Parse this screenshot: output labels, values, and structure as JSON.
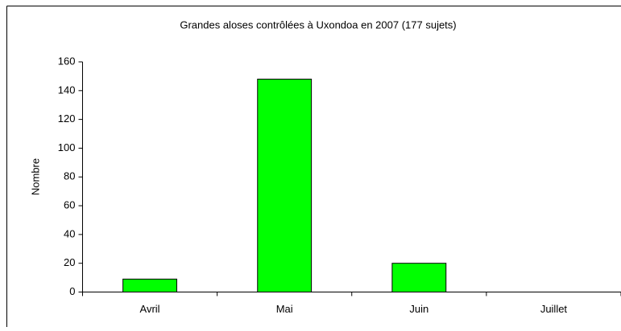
{
  "chart_data": {
    "type": "bar",
    "title": "Grandes aloses contrôlées à Uxondoa en 2007 (177 sujets)",
    "y_label": "Nombre",
    "categories": [
      "Avril",
      "Mai",
      "Juin",
      "Juillet"
    ],
    "values": [
      9,
      148,
      20,
      0
    ],
    "color": "#00ff00",
    "ylim": [
      0,
      160
    ],
    "yticks": [
      0,
      20,
      40,
      60,
      80,
      100,
      120,
      140,
      160
    ],
    "grid": false
  }
}
